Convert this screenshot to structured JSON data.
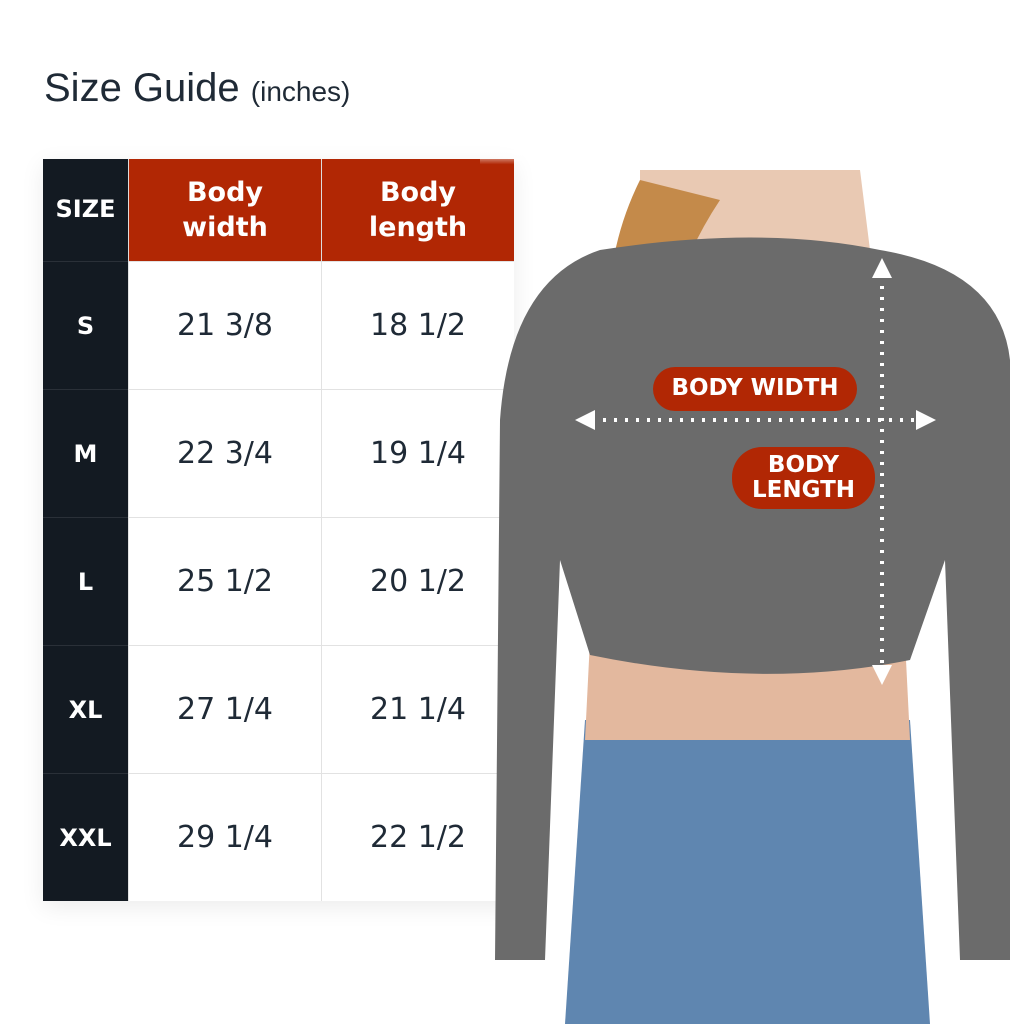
{
  "title": {
    "main": "Size Guide",
    "unit": "(inches)"
  },
  "table": {
    "headers": [
      "SIZE",
      "Body width",
      "Body length"
    ],
    "rows": [
      {
        "size": "S",
        "width": "21 3/8",
        "length": "18 1/2"
      },
      {
        "size": "M",
        "width": "22 3/4",
        "length": "19 1/4"
      },
      {
        "size": "L",
        "width": "25 1/2",
        "length": "20 1/2"
      },
      {
        "size": "XL",
        "width": "27 1/4",
        "length": "21 1/4"
      },
      {
        "size": "XXL",
        "width": "29 1/4",
        "length": "22 1/2"
      }
    ]
  },
  "diagram": {
    "width_label": "BODY WIDTH",
    "length_label_1": "BODY",
    "length_label_2": "LENGTH"
  },
  "colors": {
    "accent": "#b12704",
    "dark": "#131a22",
    "sweater": "#6b6b6b",
    "jeans": "#5a7fa8"
  }
}
